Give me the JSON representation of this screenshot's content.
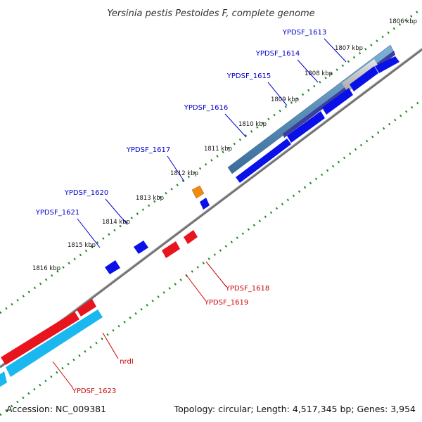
{
  "title": "Yersinia pestis Pestoides F, complete genome",
  "footer": {
    "accession": "Accession: NC_009381",
    "summary": "Topology: circular; Length: 4,517,345 bp; Genes: 3,954"
  },
  "colors": {
    "forward_label": "#0000cc",
    "reverse_label": "#cc0000",
    "forward_cds": "#0a10e8",
    "reverse_cds": "#e8141e",
    "rna": "#1ab8ee",
    "steel": "#4a86b4",
    "orange": "#f08a10",
    "backbone": "#777777",
    "tick_green": "#1d8a1d"
  },
  "icons": [
    "gene-arrow-icon"
  ],
  "ticks": [
    {
      "label": "1806 kbp"
    },
    {
      "label": "1807 kbp"
    },
    {
      "label": "1808 kbp"
    },
    {
      "label": "1809 kbp"
    },
    {
      "label": "1810 kbp"
    },
    {
      "label": "1811 kbp"
    },
    {
      "label": "1812 kbp"
    },
    {
      "label": "1813 kbp"
    },
    {
      "label": "1814 kbp"
    },
    {
      "label": "1815 kbp"
    },
    {
      "label": "1816 kbp"
    }
  ],
  "forward_genes": [
    {
      "label": "YPDSF_1613"
    },
    {
      "label": "YPDSF_1614"
    },
    {
      "label": "YPDSF_1615"
    },
    {
      "label": "YPDSF_1616"
    },
    {
      "label": "YPDSF_1617"
    },
    {
      "label": "YPDSF_1620"
    },
    {
      "label": "YPDSF_1621"
    }
  ],
  "reverse_genes": [
    {
      "label": "YPDSF_1618"
    },
    {
      "label": "YPDSF_1619"
    },
    {
      "label": "nrdI"
    },
    {
      "label": "YPDSF_1623"
    }
  ]
}
